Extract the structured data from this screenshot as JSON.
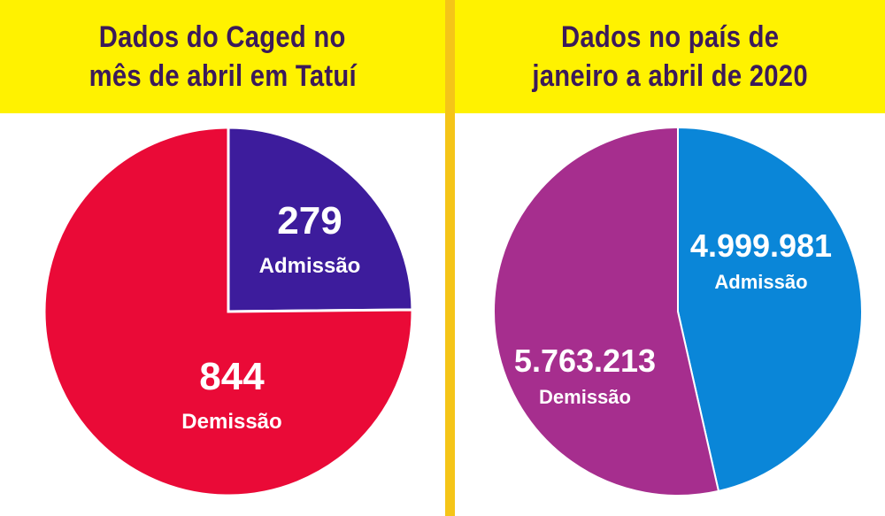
{
  "charts": {
    "left": {
      "title_line1": "Dados do Caged no",
      "title_line2": "mês de abril em Tatuí"
    },
    "right": {
      "title_line1": "Dados no país de",
      "title_line2": "janeiro a abril de 2020"
    }
  },
  "chart_data": [
    {
      "type": "pie",
      "title": "Dados do Caged no mês de abril em Tatuí",
      "slices": [
        {
          "label": "Admissão",
          "value": 279,
          "value_text": "279",
          "color": "#3d1c9c"
        },
        {
          "label": "Demissão",
          "value": 844,
          "value_text": "844",
          "color": "#ea0a37"
        }
      ]
    },
    {
      "type": "pie",
      "title": "Dados no país de janeiro a abril de 2020",
      "slices": [
        {
          "label": "Admissão",
          "value": 4999981,
          "value_text": "4.999.981",
          "color": "#0a86d8"
        },
        {
          "label": "Demissão",
          "value": 5763213,
          "value_text": "5.763.213",
          "color": "#a62e8e"
        }
      ]
    }
  ],
  "colors": {
    "banner": "#fff200",
    "banner_text": "#3b1a5a",
    "divider": "#f5c518"
  }
}
